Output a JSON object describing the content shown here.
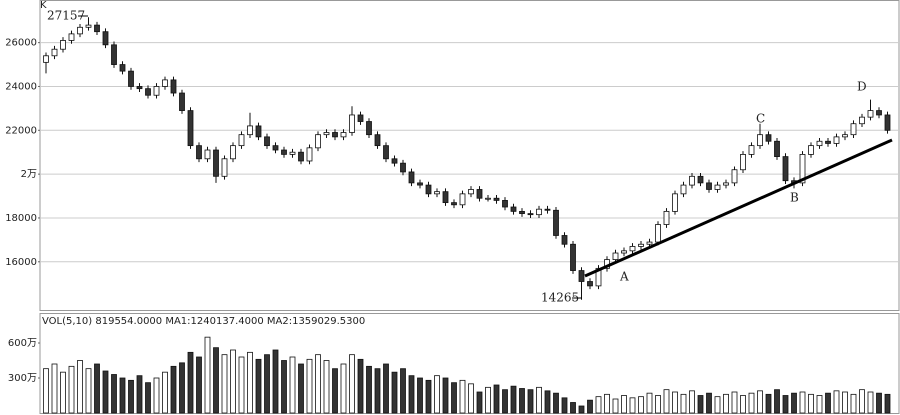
{
  "chart_data": {
    "type": "candlestick",
    "axis_label": "K",
    "volume_header": "VOL(5,10) 819554.0000 MA1:1240137.4000 MA2:1359029.5300",
    "annotations": [
      "A",
      "B",
      "C",
      "D"
    ],
    "up_color": "#ffffff",
    "down_color": "#333333",
    "grid": true,
    "ylim": [
      13800,
      27900
    ],
    "yticks": [
      16000,
      18000,
      {
        "value": 20000,
        "label": "2万"
      },
      22000,
      24000,
      26000
    ],
    "volume_ylim": [
      0,
      720
    ],
    "volume_yticks": [
      {
        "value": 300,
        "label": "300万"
      },
      {
        "value": 600,
        "label": "600万"
      }
    ],
    "open": [
      25100,
      25400,
      25700,
      26100,
      26400,
      26700,
      26800,
      26500,
      25900,
      25000,
      24700,
      24000,
      23900,
      23600,
      24000,
      24300,
      23700,
      22900,
      21300,
      20700,
      21100,
      19900,
      20700,
      21300,
      21800,
      22200,
      21700,
      21300,
      21100,
      20900,
      21000,
      20600,
      21200,
      21800,
      21900,
      21700,
      21900,
      22700,
      22400,
      21800,
      21300,
      20700,
      20500,
      20100,
      19600,
      19500,
      19100,
      19200,
      18700,
      18600,
      19100,
      19300,
      18900,
      18900,
      18800,
      18500,
      18300,
      18200,
      18150,
      18400,
      18350,
      17200,
      16800,
      15600,
      15100,
      14900,
      15700,
      16100,
      16400,
      16500,
      16700,
      16800,
      16900,
      17700,
      18300,
      19100,
      19500,
      19900,
      19600,
      19300,
      19500,
      19600,
      20200,
      20900,
      21300,
      21800,
      21500,
      20800,
      19700,
      19600,
      20900,
      21300,
      21500,
      21400,
      21700,
      21800,
      22300,
      22600,
      22900,
      22700
    ],
    "high": [
      25550,
      25850,
      26250,
      26550,
      26850,
      27157,
      26950,
      26650,
      26050,
      25150,
      24850,
      24150,
      24050,
      24150,
      24450,
      24450,
      23850,
      23050,
      21450,
      21250,
      21250,
      20850,
      21450,
      21950,
      22800,
      22350,
      21850,
      21450,
      21250,
      21150,
      21150,
      21350,
      21950,
      22050,
      22050,
      22050,
      23100,
      22850,
      22550,
      21950,
      21450,
      20850,
      20650,
      20250,
      19750,
      19650,
      19350,
      19350,
      18850,
      19250,
      19450,
      19450,
      19050,
      19050,
      18950,
      18650,
      18450,
      18350,
      18550,
      18550,
      18500,
      17350,
      16950,
      15750,
      15250,
      15850,
      16250,
      16550,
      16650,
      16850,
      16950,
      17050,
      17850,
      18450,
      19250,
      19650,
      20050,
      20050,
      19750,
      19650,
      19750,
      20350,
      21050,
      21450,
      22300,
      21950,
      21650,
      20950,
      19850,
      21050,
      21450,
      21650,
      21650,
      21850,
      21950,
      22450,
      22750,
      23400,
      23050,
      22850
    ],
    "low": [
      24600,
      25250,
      25550,
      25950,
      26250,
      26550,
      26350,
      25750,
      24850,
      24550,
      23850,
      23750,
      23450,
      23450,
      23850,
      23550,
      22750,
      21150,
      20550,
      20550,
      19600,
      19750,
      20550,
      21150,
      21650,
      21550,
      21150,
      20950,
      20750,
      20750,
      20450,
      20450,
      21050,
      21650,
      21550,
      21550,
      21750,
      22250,
      21650,
      21150,
      20550,
      20350,
      19950,
      19450,
      19350,
      18950,
      18950,
      18550,
      18450,
      18450,
      18950,
      18750,
      18750,
      18650,
      18350,
      18150,
      18050,
      18000,
      18000,
      18200,
      17050,
      16650,
      15450,
      14265,
      14750,
      14750,
      15550,
      15950,
      16250,
      16350,
      16550,
      16650,
      16750,
      17550,
      18150,
      18950,
      19350,
      19450,
      19150,
      19150,
      19350,
      19450,
      20050,
      20750,
      21150,
      21350,
      20650,
      19550,
      19350,
      19450,
      20750,
      21150,
      21250,
      21250,
      21550,
      21650,
      22150,
      22450,
      22550,
      21850
    ],
    "close": [
      25400,
      25700,
      26100,
      26400,
      26700,
      26800,
      26500,
      25900,
      25000,
      24700,
      24000,
      23900,
      23600,
      24000,
      24300,
      23700,
      22900,
      21300,
      20700,
      21100,
      19900,
      20700,
      21300,
      21800,
      22200,
      21700,
      21300,
      21100,
      20900,
      21000,
      20600,
      21200,
      21800,
      21900,
      21700,
      21900,
      22700,
      22400,
      21800,
      21300,
      20700,
      20500,
      20100,
      19600,
      19500,
      19100,
      19200,
      18700,
      18600,
      19100,
      19300,
      18900,
      18900,
      18800,
      18500,
      18300,
      18200,
      18150,
      18400,
      18350,
      17200,
      16800,
      15600,
      15100,
      14900,
      15700,
      16100,
      16400,
      16500,
      16700,
      16800,
      16900,
      17700,
      18300,
      19100,
      19500,
      19900,
      19600,
      19300,
      19500,
      19600,
      20200,
      20900,
      21300,
      21800,
      21500,
      20800,
      19700,
      19600,
      20900,
      21300,
      21500,
      21400,
      21700,
      21800,
      22300,
      22600,
      22900,
      22700,
      22000
    ],
    "volume": [
      380,
      420,
      350,
      400,
      450,
      380,
      420,
      360,
      330,
      300,
      280,
      320,
      260,
      300,
      350,
      400,
      430,
      520,
      480,
      650,
      560,
      500,
      540,
      480,
      520,
      460,
      500,
      540,
      450,
      480,
      420,
      460,
      500,
      450,
      380,
      420,
      500,
      460,
      400,
      380,
      420,
      350,
      380,
      320,
      300,
      280,
      320,
      300,
      260,
      280,
      250,
      180,
      220,
      240,
      200,
      230,
      210,
      200,
      220,
      190,
      170,
      130,
      90,
      60,
      110,
      140,
      160,
      120,
      150,
      130,
      140,
      170,
      150,
      200,
      180,
      160,
      190,
      150,
      170,
      140,
      160,
      180,
      150,
      170,
      190,
      160,
      200,
      150,
      170,
      180,
      160,
      150,
      170,
      190,
      180,
      160,
      200,
      180,
      170,
      160
    ]
  }
}
